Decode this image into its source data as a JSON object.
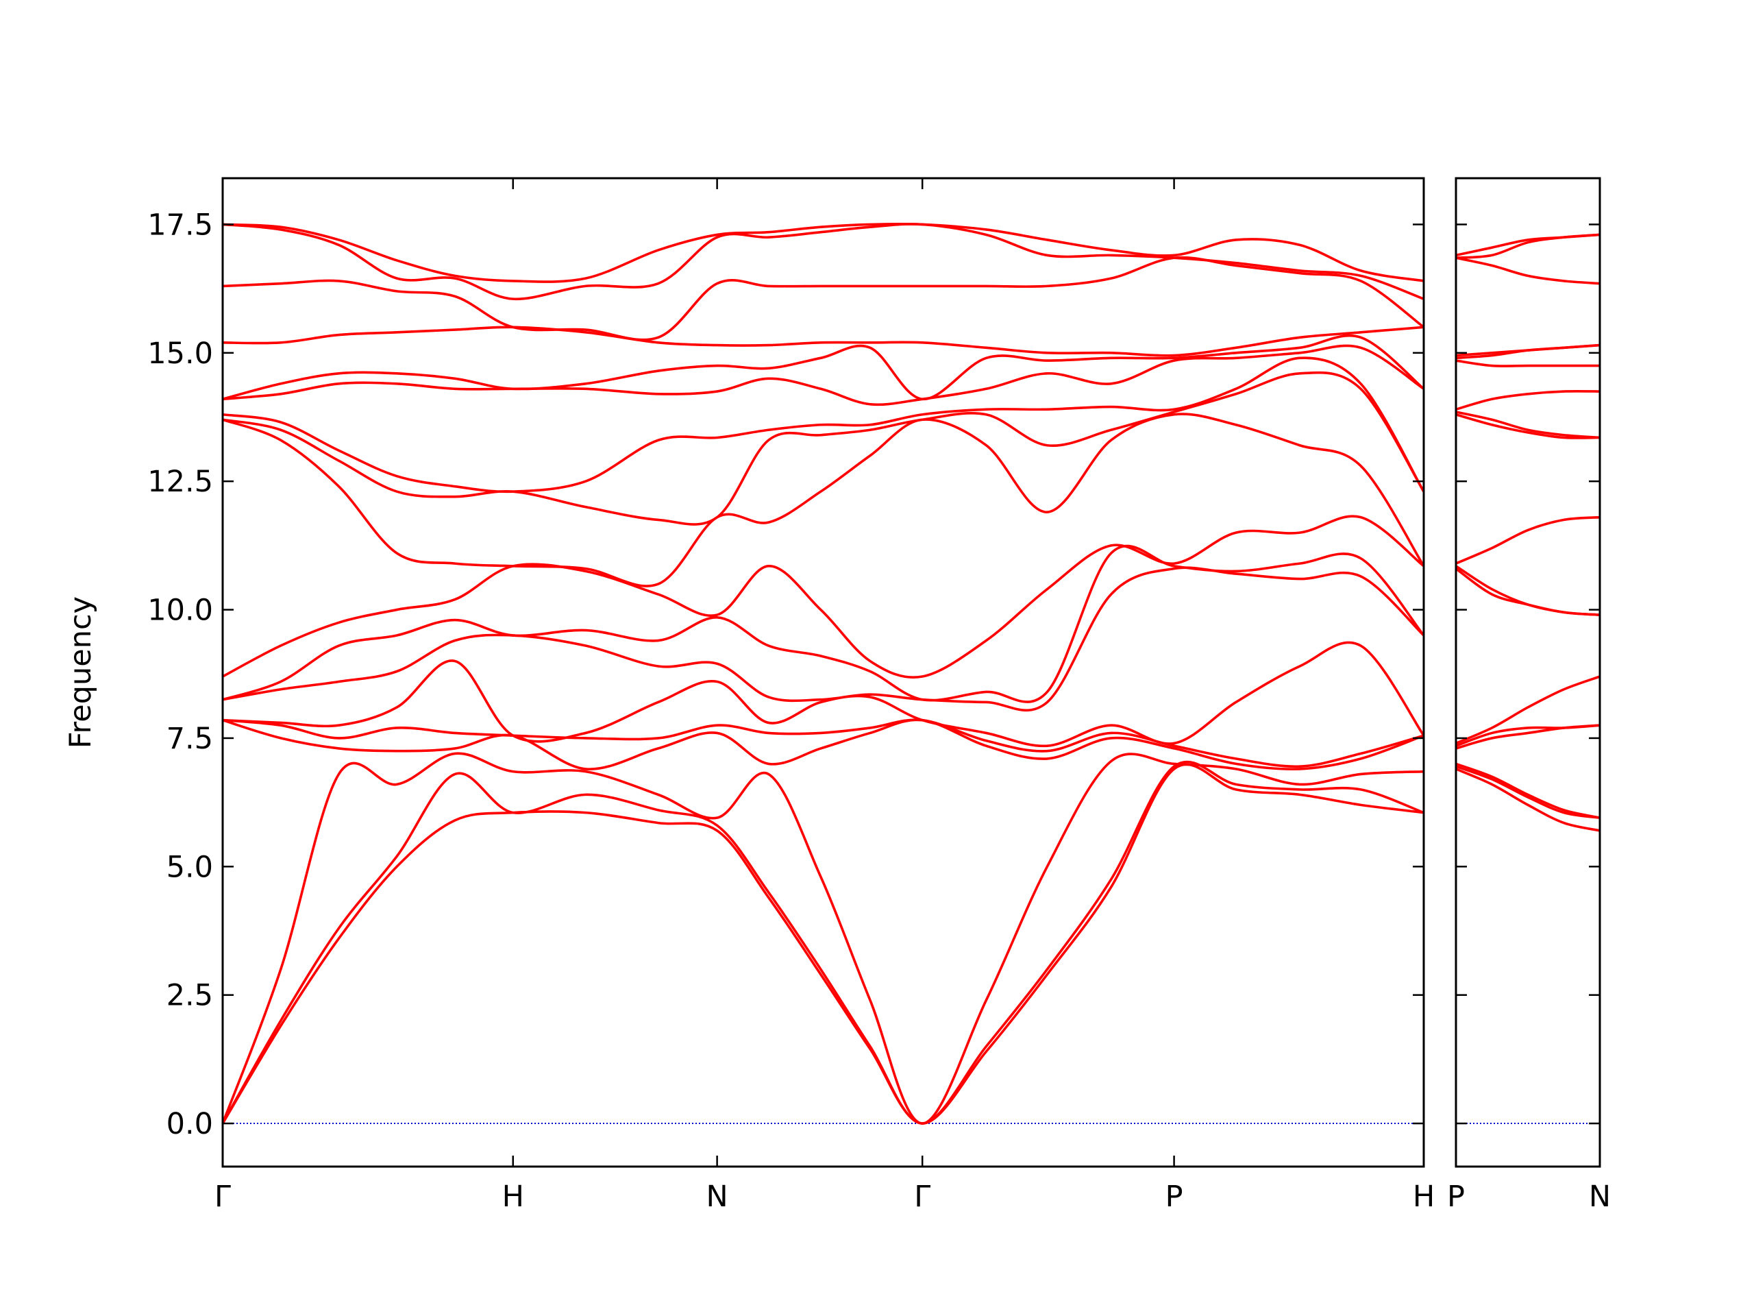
{
  "chart_data": [
    {
      "type": "line",
      "y_label": "Frequency",
      "color": "#ff0000",
      "xlim": [
        0,
        4.137
      ],
      "ylim": [
        -0.84,
        18.4
      ],
      "xticks": [
        {
          "value": 0,
          "label": "Γ"
        },
        {
          "value": 1.0,
          "label": "H"
        },
        {
          "value": 1.703,
          "label": "N"
        },
        {
          "value": 2.41,
          "label": "Γ"
        },
        {
          "value": 3.277,
          "label": "P"
        },
        {
          "value": 4.137,
          "label": "H"
        }
      ],
      "yticks": [
        {
          "value": 0,
          "label": "0.0"
        },
        2.5,
        {
          "value": 5,
          "label": "5.0"
        },
        7.5,
        {
          "value": 10,
          "label": "10.0"
        },
        12.5,
        {
          "value": 15,
          "label": "15.0"
        },
        17.5
      ],
      "zero_line": {
        "y": 0,
        "color": "#0000cc"
      },
      "x": [
        0,
        0.2,
        0.4,
        0.6,
        0.8,
        1.0,
        1.25,
        1.5,
        1.703,
        1.88,
        2.06,
        2.23,
        2.41,
        2.63,
        2.84,
        3.06,
        3.277,
        3.49,
        3.71,
        3.92,
        4.137
      ],
      "series": [
        {
          "values": [
            0,
            1.9,
            3.6,
            5.0,
            5.9,
            6.05,
            6.05,
            5.85,
            5.7,
            4.4,
            2.9,
            1.45,
            0,
            1.4,
            2.9,
            4.6,
            6.9,
            6.5,
            6.4,
            6.2,
            6.05
          ]
        },
        {
          "values": [
            0,
            2.0,
            3.8,
            5.2,
            6.8,
            6.05,
            6.4,
            6.1,
            5.8,
            4.5,
            3.0,
            1.5,
            0,
            1.5,
            3.0,
            4.75,
            6.95,
            6.6,
            6.5,
            6.5,
            6.05
          ]
        },
        {
          "values": [
            0,
            3.0,
            6.8,
            6.6,
            7.2,
            6.85,
            6.85,
            6.4,
            5.95,
            6.8,
            4.8,
            2.4,
            0,
            2.4,
            5.0,
            7.05,
            7.0,
            6.9,
            6.6,
            6.8,
            6.85
          ]
        },
        {
          "values": [
            7.85,
            7.5,
            7.3,
            7.25,
            7.3,
            7.55,
            6.9,
            7.3,
            7.6,
            7.0,
            7.3,
            7.6,
            7.85,
            7.35,
            7.1,
            7.5,
            7.3,
            7.0,
            6.9,
            7.1,
            7.55
          ]
        },
        {
          "values": [
            7.85,
            7.75,
            7.5,
            7.7,
            7.6,
            7.55,
            7.5,
            7.5,
            7.75,
            7.6,
            7.6,
            7.7,
            7.85,
            7.45,
            7.25,
            7.6,
            7.35,
            7.1,
            6.95,
            7.2,
            7.55
          ]
        },
        {
          "values": [
            7.85,
            7.8,
            7.75,
            8.1,
            9.0,
            7.55,
            7.6,
            8.2,
            8.6,
            7.8,
            8.2,
            8.3,
            7.85,
            7.6,
            7.35,
            7.75,
            7.4,
            8.2,
            8.9,
            9.3,
            7.55
          ]
        },
        {
          "values": [
            8.25,
            8.45,
            8.6,
            8.8,
            9.4,
            9.5,
            9.3,
            8.9,
            8.95,
            8.3,
            8.25,
            8.35,
            8.25,
            8.2,
            8.2,
            10.3,
            10.8,
            10.7,
            10.6,
            10.65,
            9.5
          ]
        },
        {
          "values": [
            8.25,
            8.6,
            9.3,
            9.5,
            9.8,
            9.5,
            9.6,
            9.4,
            9.85,
            9.3,
            9.1,
            8.8,
            8.25,
            8.4,
            8.4,
            11.1,
            10.85,
            10.75,
            10.9,
            11.0,
            9.5
          ]
        },
        {
          "values": [
            8.7,
            9.3,
            9.75,
            10.0,
            10.2,
            10.85,
            10.75,
            10.3,
            9.9,
            10.85,
            10.0,
            9.0,
            8.7,
            9.4,
            10.4,
            11.25,
            10.9,
            11.5,
            11.5,
            11.8,
            10.85
          ]
        },
        {
          "values": [
            13.7,
            13.3,
            12.4,
            11.1,
            10.9,
            10.85,
            10.8,
            10.5,
            11.8,
            11.7,
            12.3,
            13.0,
            13.7,
            13.2,
            11.9,
            13.3,
            13.8,
            13.6,
            13.2,
            12.8,
            10.85
          ]
        },
        {
          "values": [
            13.7,
            13.5,
            12.9,
            12.3,
            12.2,
            12.3,
            12.0,
            11.75,
            11.8,
            13.3,
            13.4,
            13.5,
            13.7,
            13.8,
            13.2,
            13.5,
            13.85,
            14.2,
            14.6,
            14.3,
            12.3
          ]
        },
        {
          "values": [
            13.8,
            13.65,
            13.1,
            12.6,
            12.4,
            12.3,
            12.5,
            13.3,
            13.35,
            13.5,
            13.6,
            13.6,
            13.8,
            13.9,
            13.9,
            13.95,
            13.9,
            14.3,
            14.9,
            14.4,
            12.3
          ]
        },
        {
          "values": [
            14.1,
            14.2,
            14.4,
            14.4,
            14.3,
            14.3,
            14.3,
            14.2,
            14.25,
            14.5,
            14.3,
            14.0,
            14.1,
            14.3,
            14.6,
            14.4,
            14.85,
            14.9,
            15.0,
            15.1,
            14.3
          ]
        },
        {
          "values": [
            14.1,
            14.4,
            14.6,
            14.6,
            14.5,
            14.3,
            14.4,
            14.65,
            14.75,
            14.7,
            14.9,
            15.1,
            14.1,
            14.9,
            14.85,
            14.9,
            14.9,
            15.0,
            15.1,
            15.3,
            14.3
          ]
        },
        {
          "values": [
            15.2,
            15.2,
            15.35,
            15.4,
            15.45,
            15.5,
            15.4,
            15.2,
            15.15,
            15.15,
            15.2,
            15.2,
            15.2,
            15.1,
            15.0,
            15.0,
            14.95,
            15.1,
            15.3,
            15.4,
            15.5
          ]
        },
        {
          "values": [
            16.3,
            16.35,
            16.4,
            16.2,
            16.1,
            15.5,
            15.45,
            15.3,
            16.35,
            16.3,
            16.3,
            16.3,
            16.3,
            16.3,
            16.3,
            16.45,
            16.85,
            16.7,
            16.55,
            16.4,
            15.5
          ]
        },
        {
          "values": [
            17.5,
            17.4,
            17.1,
            16.45,
            16.45,
            16.05,
            16.3,
            16.35,
            17.25,
            17.25,
            17.35,
            17.45,
            17.5,
            17.3,
            16.9,
            16.9,
            16.85,
            16.75,
            16.6,
            16.5,
            16.05
          ]
        },
        {
          "values": [
            17.5,
            17.45,
            17.2,
            16.8,
            16.5,
            16.4,
            16.45,
            17.0,
            17.3,
            17.35,
            17.45,
            17.5,
            17.5,
            17.4,
            17.2,
            17.0,
            16.9,
            17.2,
            17.1,
            16.6,
            16.4
          ]
        }
      ]
    },
    {
      "type": "line",
      "color": "#ff0000",
      "sharey": true,
      "xlim": [
        0,
        0.496
      ],
      "xticks": [
        {
          "value": 0,
          "label": "P"
        },
        {
          "value": 0.496,
          "label": "N"
        }
      ],
      "zero_line": {
        "y": 0,
        "color": "#0000cc"
      },
      "x": [
        0,
        0.124,
        0.248,
        0.372,
        0.496
      ],
      "series": [
        {
          "values": [
            6.9,
            6.6,
            6.2,
            5.85,
            5.7
          ]
        },
        {
          "values": [
            6.95,
            6.7,
            6.35,
            6.05,
            5.95
          ]
        },
        {
          "values": [
            7.0,
            6.75,
            6.4,
            6.1,
            5.95
          ]
        },
        {
          "values": [
            7.3,
            7.5,
            7.6,
            7.7,
            7.75
          ]
        },
        {
          "values": [
            7.35,
            7.6,
            7.7,
            7.7,
            7.75
          ]
        },
        {
          "values": [
            7.4,
            7.7,
            8.1,
            8.45,
            8.7
          ]
        },
        {
          "values": [
            10.8,
            10.3,
            10.1,
            9.95,
            9.9
          ]
        },
        {
          "values": [
            10.85,
            10.4,
            10.1,
            9.95,
            9.9
          ]
        },
        {
          "values": [
            10.9,
            11.2,
            11.55,
            11.75,
            11.8
          ]
        },
        {
          "values": [
            13.8,
            13.6,
            13.45,
            13.35,
            13.35
          ]
        },
        {
          "values": [
            13.85,
            13.7,
            13.5,
            13.4,
            13.35
          ]
        },
        {
          "values": [
            13.9,
            14.1,
            14.2,
            14.25,
            14.25
          ]
        },
        {
          "values": [
            14.85,
            14.75,
            14.75,
            14.75,
            14.75
          ]
        },
        {
          "values": [
            14.9,
            14.95,
            15.05,
            15.1,
            15.15
          ]
        },
        {
          "values": [
            14.95,
            15.0,
            15.05,
            15.1,
            15.15
          ]
        },
        {
          "values": [
            16.85,
            16.7,
            16.5,
            16.4,
            16.35
          ]
        },
        {
          "values": [
            16.85,
            16.9,
            17.15,
            17.25,
            17.3
          ]
        },
        {
          "values": [
            16.9,
            17.05,
            17.2,
            17.25,
            17.3
          ]
        }
      ]
    }
  ]
}
